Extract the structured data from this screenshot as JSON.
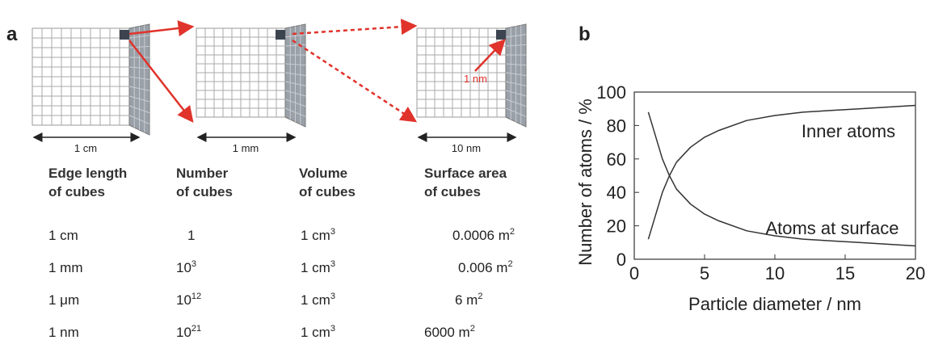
{
  "panel_a": {
    "label": "a",
    "cubes": [
      {
        "scale": "1 cm"
      },
      {
        "scale": "1 mm"
      },
      {
        "scale": "10 nm"
      }
    ],
    "annotation": "1 nm",
    "table": {
      "header": [
        [
          "Edge length",
          "of cubes"
        ],
        [
          "Number",
          "of cubes"
        ],
        [
          "Volume",
          "of cubes"
        ],
        [
          "Surface area",
          "of cubes"
        ]
      ],
      "rows": [
        [
          {
            "text": "1 cm"
          },
          {
            "text": "1"
          },
          {
            "text": "1 cm",
            "sup": "3"
          },
          {
            "text": "0.0006 m",
            "sup": "2"
          }
        ],
        [
          {
            "text": "1 mm"
          },
          {
            "text": "10",
            "sup": "3"
          },
          {
            "text": "1 cm",
            "sup": "3"
          },
          {
            "text": "0.006 m",
            "sup": "2"
          }
        ],
        [
          {
            "text": "1 μm"
          },
          {
            "text": "10",
            "sup": "12"
          },
          {
            "text": "1 cm",
            "sup": "3"
          },
          {
            "text": "6 m",
            "sup": "2"
          }
        ],
        [
          {
            "text": "1 nm"
          },
          {
            "text": "10",
            "sup": "21"
          },
          {
            "text": "1 cm",
            "sup": "3"
          },
          {
            "text": "6000 m",
            "sup": "2"
          }
        ]
      ]
    }
  },
  "chart_data": {
    "type": "line",
    "panel_label": "b",
    "x_label": "Particle diameter / nm",
    "y_label": "Number of atoms / %",
    "x": [
      1,
      2,
      2.5,
      3,
      4,
      5,
      6,
      8,
      10,
      12,
      14,
      16,
      18,
      20
    ],
    "series": [
      {
        "name": "Inner atoms",
        "color": "#333333",
        "values": [
          12,
          40,
          50,
          58,
          67,
          73,
          77,
          83,
          86,
          88,
          89,
          90,
          91,
          92
        ]
      },
      {
        "name": "Atoms at surface",
        "color": "#333333",
        "values": [
          88,
          60,
          50,
          42,
          33,
          27,
          23,
          17,
          14,
          12,
          11,
          10,
          9,
          8
        ]
      }
    ],
    "xlim": [
      0,
      20
    ],
    "xticks": [
      0,
      5,
      10,
      15,
      20
    ],
    "ylim": [
      0,
      100
    ],
    "yticks": [
      0,
      20,
      40,
      60,
      80,
      100
    ]
  }
}
